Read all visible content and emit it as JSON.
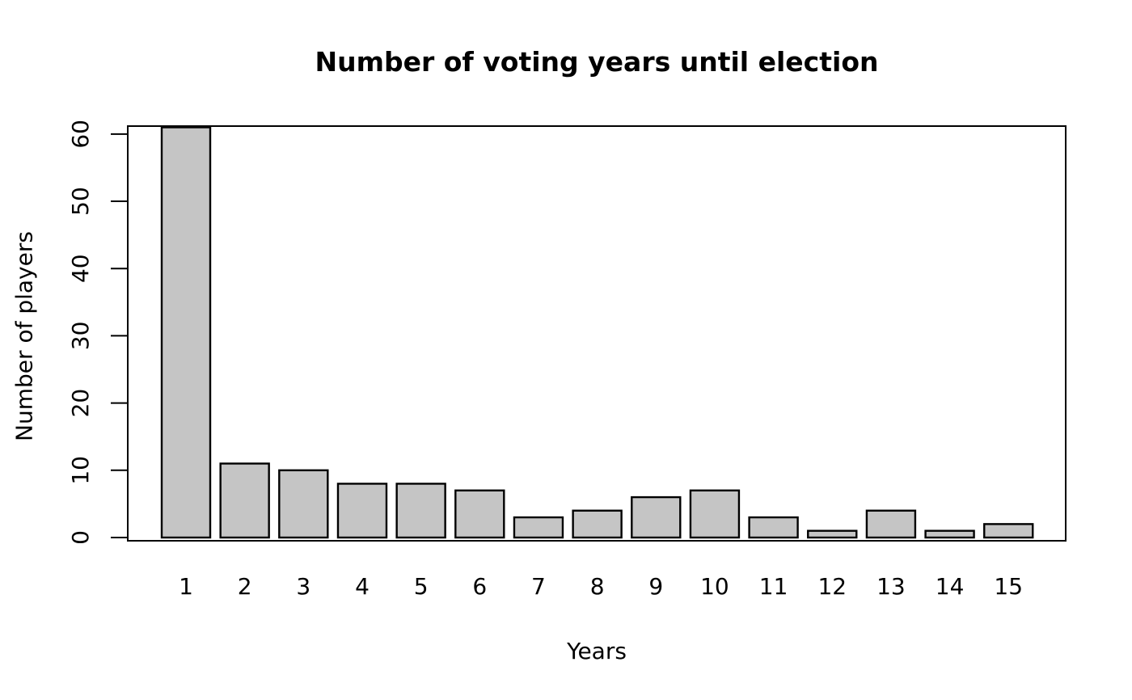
{
  "chart_data": {
    "type": "bar",
    "title": "Number of voting years until election",
    "xlabel": "Years",
    "ylabel": "Number of players",
    "categories": [
      "1",
      "2",
      "3",
      "4",
      "5",
      "6",
      "7",
      "8",
      "9",
      "10",
      "11",
      "12",
      "13",
      "14",
      "15"
    ],
    "values": [
      61,
      11,
      10,
      8,
      8,
      7,
      3,
      4,
      6,
      7,
      3,
      1,
      4,
      1,
      2
    ],
    "yticks": [
      0,
      10,
      20,
      30,
      40,
      50,
      60
    ],
    "ylim": [
      0,
      61.3
    ],
    "grid": false,
    "legend_position": "none",
    "bar_fill": "#C5C5C5",
    "bar_stroke": "#000000",
    "axis_color": "#000000",
    "background_color": "#FFFFFF"
  }
}
